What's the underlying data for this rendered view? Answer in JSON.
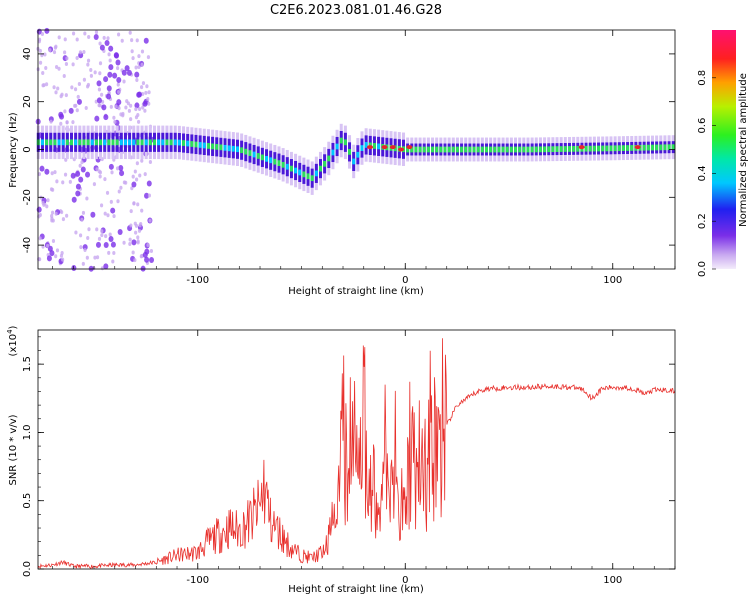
{
  "title": "C2E6.2023.081.01.46.G28",
  "colors": {
    "snr_line": "#e8302c",
    "spectrum_core": "#2de05a",
    "spectrum_edge": "#5a20e0",
    "spectrum_halo": "#c8a8f0",
    "spectrum_peak": "#e8242c"
  },
  "chart_data": [
    {
      "type": "heatmap",
      "title": "C2E6.2023.081.01.46.G28",
      "xlabel": "Height of straight line (km)",
      "ylabel": "Frequency (Hz)",
      "xlim": [
        -177,
        130
      ],
      "ylim": [
        -50,
        50
      ],
      "xticks": [
        -100,
        0,
        100
      ],
      "yticks": [
        -40,
        -20,
        0,
        20,
        40
      ],
      "colorbar": {
        "label": "Normalized spectral amplitude",
        "range": [
          0.0,
          1.0
        ],
        "ticks": [
          "0.0",
          "0.2",
          "0.4",
          "0.6",
          "0.8"
        ],
        "colormap": "rainbow"
      },
      "center_frequency_track": {
        "x": [
          -177,
          -140,
          -110,
          -80,
          -60,
          -45,
          -38,
          -30,
          -25,
          -20,
          -10,
          0,
          20,
          60,
          100,
          130
        ],
        "y": [
          3,
          3,
          3,
          0,
          -6,
          -12,
          -5,
          5,
          -5,
          2,
          1,
          0,
          0,
          0,
          0.5,
          1
        ]
      }
    },
    {
      "type": "line",
      "xlabel": "Height of straight line (km)",
      "ylabel": "SNR (10 * v/v)",
      "scale_label": "(x10",
      "scale_exponent": "4",
      "scale_suffix": ")",
      "xlim": [
        -177,
        130
      ],
      "ylim": [
        0,
        1.75
      ],
      "xticks": [
        -100,
        0,
        100
      ],
      "yticks": [
        "0.0",
        "0.5",
        "1.0",
        "1.5"
      ],
      "series": [
        {
          "x": [
            -177,
            -170,
            -165,
            -160,
            -150,
            -140,
            -130,
            -120,
            -110,
            -100,
            -95,
            -90,
            -85,
            -80,
            -75,
            -70,
            -68,
            -65,
            -60,
            -55,
            -50,
            -45,
            -40,
            -35,
            -32,
            -30,
            -28,
            -25,
            -22,
            -20,
            -18,
            -15,
            -12,
            -10,
            -8,
            -5,
            -3,
            0,
            3,
            5,
            8,
            10,
            12,
            15,
            18,
            20,
            25,
            30,
            35,
            40,
            50,
            60,
            70,
            80,
            85,
            88,
            90,
            95,
            100,
            105,
            110,
            113,
            115,
            120,
            125,
            130
          ],
          "y": [
            0.02,
            0.03,
            0.05,
            0.02,
            0.02,
            0.03,
            0.03,
            0.05,
            0.1,
            0.12,
            0.2,
            0.25,
            0.3,
            0.28,
            0.35,
            0.45,
            0.62,
            0.35,
            0.25,
            0.15,
            0.1,
            0.08,
            0.12,
            0.35,
            0.6,
            1.1,
            0.7,
            1.5,
            0.6,
            1.55,
            0.4,
            0.8,
            0.3,
            1.2,
            0.6,
            0.9,
            0.5,
            0.7,
            1.1,
            0.8,
            1.0,
            0.7,
            1.15,
            0.95,
            1.15,
            1.05,
            1.2,
            1.25,
            1.3,
            1.32,
            1.33,
            1.33,
            1.34,
            1.33,
            1.32,
            1.28,
            1.25,
            1.32,
            1.33,
            1.33,
            1.32,
            1.3,
            1.28,
            1.31,
            1.31,
            1.3
          ]
        }
      ]
    }
  ]
}
